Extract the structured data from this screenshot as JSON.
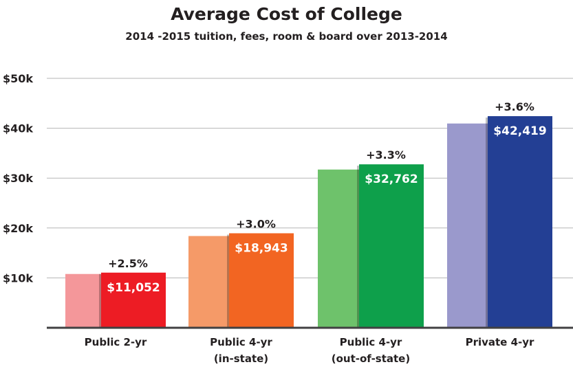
{
  "chart_data": {
    "type": "bar",
    "title": "Average Cost of College",
    "subtitle": "2014 -2015 tuition, fees, room & board over 2013-2014",
    "categories": [
      [
        "Public 2-yr"
      ],
      [
        "Public 4-yr",
        "(in-state)"
      ],
      [
        "Public 4-yr",
        "(out-of-state)"
      ],
      [
        "Private 4-yr"
      ]
    ],
    "series": [
      {
        "values": [
          10783,
          18391,
          31716,
          40945
        ],
        "colors": [
          "#f4979a",
          "#f59a68",
          "#6ec26b",
          "#9a99cc"
        ]
      },
      {
        "values": [
          11052,
          18943,
          32762,
          42419
        ],
        "colors": [
          "#ed1c24",
          "#f26522",
          "#0ea04b",
          "#233f94"
        ]
      }
    ],
    "data_labels": [
      "$11,052",
      "$18,943",
      "$32,762",
      "$42,419"
    ],
    "change_labels": [
      "+2.5%",
      "+3.0%",
      "+3.3%",
      "+3.6%"
    ],
    "yticks": [
      10000,
      20000,
      30000,
      40000,
      50000
    ],
    "ytick_labels": [
      "$10k",
      "$20k",
      "$30k",
      "$40k",
      "$50k"
    ],
    "ylim": [
      0,
      50000
    ],
    "grid": true
  }
}
